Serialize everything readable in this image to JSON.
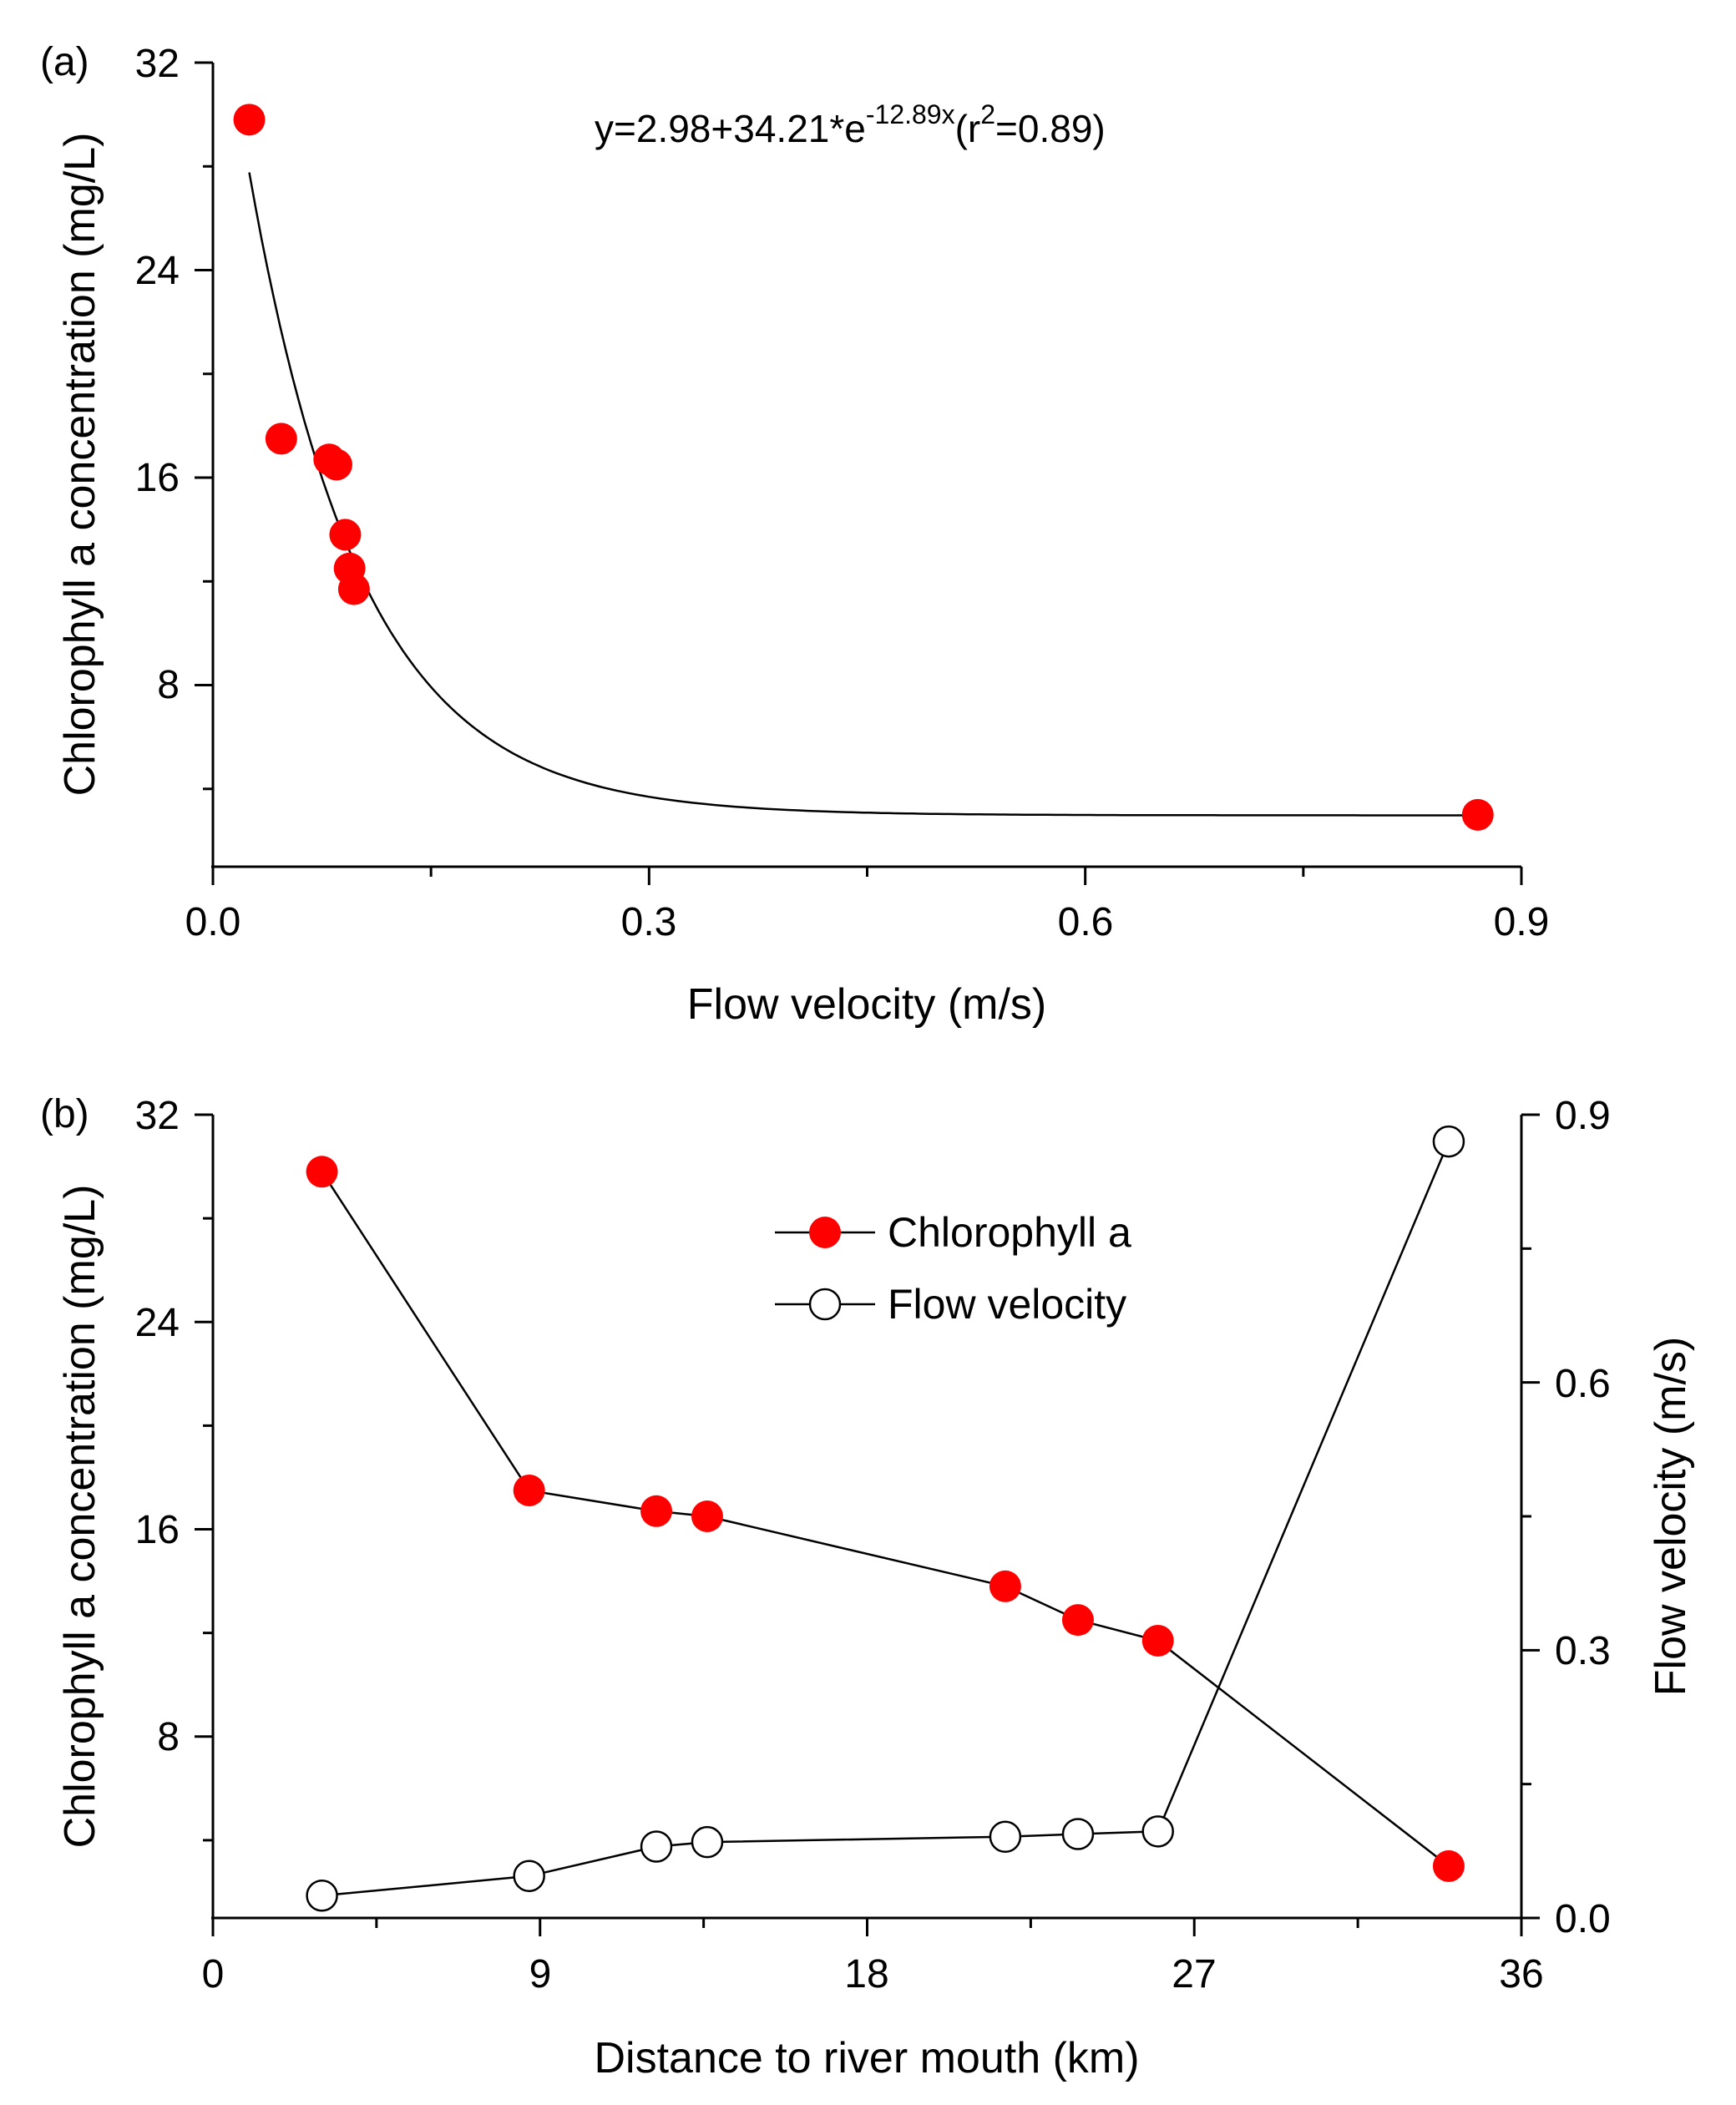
{
  "chart_data": [
    {
      "panel_label": "(a)",
      "type": "scatter",
      "xlabel": "Flow velocity (m/s)",
      "ylabel": "Chlorophyll a concentration (mg/L)",
      "xlim": [
        0,
        0.9
      ],
      "ylim": [
        1,
        32
      ],
      "x_ticks": [
        "0.0",
        "0.3",
        "0.6",
        "0.9"
      ],
      "y_ticks": [
        "8",
        "16",
        "24",
        "32"
      ],
      "grid": false,
      "annotation": {
        "prefix": "y=2.98+34.21*e",
        "exponent": "-12.89x",
        "middle": "(r",
        "r_exponent": "2",
        "suffix": "=0.89)"
      },
      "fit": {
        "a": 2.98,
        "b": 34.21,
        "c": -12.89,
        "x_range": [
          0.025,
          0.87
        ]
      },
      "series": [
        {
          "marker": "filled-circle",
          "color": "#ff0000",
          "points": [
            [
              0.025,
              29.8
            ],
            [
              0.047,
              17.5
            ],
            [
              0.08,
              16.7
            ],
            [
              0.085,
              16.5
            ],
            [
              0.091,
              13.8
            ],
            [
              0.094,
              12.5
            ],
            [
              0.097,
              11.7
            ],
            [
              0.87,
              3.0
            ]
          ]
        }
      ]
    },
    {
      "panel_label": "(b)",
      "type": "line",
      "xlabel": "Distance to river mouth (km)",
      "ylabel": "Chlorophyll a concentration (mg/L)",
      "ylabel_right": "Flow velocity (m/s)",
      "xlim": [
        0,
        36
      ],
      "ylim": [
        1,
        32
      ],
      "ylim_right": [
        0,
        0.9
      ],
      "x_ticks": [
        "0",
        "9",
        "18",
        "27",
        "36"
      ],
      "y_ticks": [
        "8",
        "16",
        "24",
        "32"
      ],
      "y_ticks_right": [
        "0.0",
        "0.3",
        "0.6",
        "0.9"
      ],
      "legend_position": "top-center",
      "grid": false,
      "series": [
        {
          "name": "Chlorophyll a",
          "axis": "left",
          "marker": "filled-circle",
          "color": "#ff0000",
          "x": [
            3,
            8.7,
            12.2,
            13.6,
            21.8,
            23.8,
            26,
            34
          ],
          "values": [
            29.8,
            17.5,
            16.7,
            16.5,
            13.8,
            12.5,
            11.7,
            3.0
          ]
        },
        {
          "name": "Flow velocity",
          "axis": "right",
          "marker": "open-circle",
          "color": "#000000",
          "x": [
            3,
            8.7,
            12.2,
            13.6,
            21.8,
            23.8,
            26,
            34
          ],
          "values": [
            0.025,
            0.047,
            0.08,
            0.085,
            0.091,
            0.094,
            0.097,
            0.87
          ]
        }
      ]
    }
  ]
}
